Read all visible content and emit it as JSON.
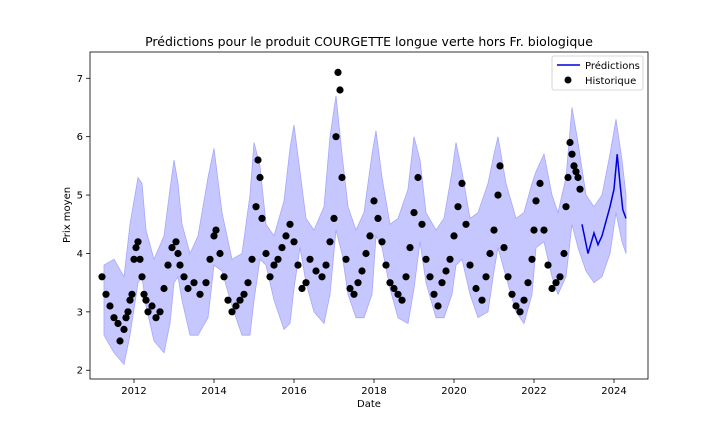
{
  "chart_data": {
    "type": "line",
    "title": "Prédictions pour le produit COURGETTE longue verte hors Fr. biologique",
    "xlabel": "Date",
    "ylabel": "Prix moyen",
    "xlim": [
      2010.9,
      2024.85
    ],
    "ylim": [
      1.85,
      7.45
    ],
    "x_ticks": [
      2012,
      2014,
      2016,
      2018,
      2020,
      2022,
      2024
    ],
    "y_ticks": [
      2,
      3,
      4,
      5,
      6,
      7
    ],
    "legend": {
      "position": "top-right",
      "entries": [
        "Prédictions",
        "Historique"
      ]
    },
    "colors": {
      "prediction": "#0000dd",
      "band": "#c7c7ff",
      "band_edge": "#a6a6ff",
      "history": "#000000"
    },
    "band": {
      "x": [
        2011.25,
        2011.5,
        2011.75,
        2011.9,
        2012.1,
        2012.2,
        2012.3,
        2012.5,
        2012.75,
        2012.9,
        2013.0,
        2013.1,
        2013.2,
        2013.4,
        2013.6,
        2013.85,
        2014.0,
        2014.2,
        2014.45,
        2014.7,
        2014.9,
        2015.0,
        2015.15,
        2015.3,
        2015.5,
        2015.75,
        2015.9,
        2016.0,
        2016.15,
        2016.3,
        2016.5,
        2016.75,
        2016.9,
        2017.05,
        2017.2,
        2017.35,
        2017.55,
        2017.75,
        2017.95,
        2018.05,
        2018.2,
        2018.4,
        2018.6,
        2018.85,
        2019.0,
        2019.15,
        2019.3,
        2019.55,
        2019.75,
        2019.95,
        2020.05,
        2020.2,
        2020.4,
        2020.6,
        2020.85,
        2021.0,
        2021.1,
        2021.3,
        2021.55,
        2021.75,
        2021.95,
        2022.05,
        2022.25,
        2022.45,
        2022.6,
        2022.8,
        2022.95,
        2023.1,
        2023.3,
        2023.5,
        2023.7,
        2023.9,
        2024.05,
        2024.2,
        2024.3
      ],
      "upper": [
        3.8,
        3.9,
        3.6,
        4.5,
        5.3,
        5.2,
        4.4,
        3.9,
        4.3,
        5.1,
        5.6,
        5.2,
        4.5,
        4.0,
        4.3,
        5.3,
        5.8,
        4.7,
        3.9,
        4.0,
        5.0,
        5.9,
        5.5,
        4.5,
        4.3,
        4.9,
        5.8,
        6.2,
        5.4,
        4.6,
        4.4,
        4.8,
        6.0,
        6.7,
        5.7,
        4.8,
        4.4,
        4.7,
        5.7,
        6.1,
        5.3,
        4.5,
        4.6,
        5.1,
        6.0,
        5.6,
        4.7,
        4.4,
        4.6,
        5.4,
        5.9,
        5.4,
        4.6,
        4.7,
        5.2,
        5.7,
        6.0,
        5.2,
        4.6,
        4.7,
        5.2,
        5.4,
        5.7,
        5.0,
        4.7,
        5.3,
        6.5,
        5.9,
        5.0,
        4.8,
        5.0,
        5.7,
        6.3,
        5.6,
        5.0
      ],
      "lower": [
        2.6,
        2.3,
        2.1,
        2.6,
        3.5,
        3.6,
        3.1,
        2.5,
        2.3,
        2.8,
        3.5,
        3.6,
        3.2,
        2.6,
        2.6,
        2.9,
        3.8,
        3.7,
        3.1,
        2.6,
        2.6,
        3.2,
        3.9,
        3.8,
        3.2,
        2.7,
        2.8,
        3.4,
        4.1,
        3.5,
        3.0,
        2.8,
        3.3,
        4.4,
        4.0,
        3.3,
        2.9,
        2.9,
        3.3,
        4.3,
        4.1,
        3.4,
        2.9,
        2.8,
        3.4,
        4.2,
        3.5,
        2.9,
        2.9,
        3.3,
        3.8,
        3.9,
        3.3,
        2.9,
        3.0,
        3.7,
        4.1,
        3.6,
        3.0,
        2.8,
        3.3,
        4.1,
        4.2,
        3.6,
        3.3,
        3.6,
        4.5,
        4.1,
        3.7,
        3.5,
        3.6,
        4.0,
        4.7,
        4.2,
        4.0
      ]
    },
    "series": [
      {
        "name": "Prédictions",
        "x": [
          2023.2,
          2023.35,
          2023.5,
          2023.6,
          2023.7,
          2023.8,
          2023.9,
          2024.0,
          2024.08,
          2024.15,
          2024.22,
          2024.3
        ],
        "y": [
          4.5,
          4.0,
          4.35,
          4.15,
          4.3,
          4.55,
          4.8,
          5.1,
          5.7,
          5.2,
          4.75,
          4.6
        ]
      },
      {
        "name": "Historique",
        "x": [
          2011.2,
          2011.3,
          2011.4,
          2011.5,
          2011.6,
          2011.65,
          2011.75,
          2011.8,
          2011.85,
          2011.9,
          2011.95,
          2012.0,
          2012.05,
          2012.1,
          2012.15,
          2012.2,
          2012.25,
          2012.3,
          2012.35,
          2012.45,
          2012.55,
          2012.65,
          2012.75,
          2012.85,
          2012.95,
          2013.05,
          2013.1,
          2013.15,
          2013.25,
          2013.35,
          2013.5,
          2013.65,
          2013.8,
          2013.9,
          2014.0,
          2014.05,
          2014.15,
          2014.25,
          2014.35,
          2014.45,
          2014.55,
          2014.65,
          2014.75,
          2014.85,
          2014.95,
          2015.05,
          2015.1,
          2015.15,
          2015.2,
          2015.3,
          2015.4,
          2015.5,
          2015.6,
          2015.7,
          2015.8,
          2015.9,
          2016.0,
          2016.1,
          2016.2,
          2016.3,
          2016.4,
          2016.55,
          2016.7,
          2016.8,
          2016.9,
          2017.0,
          2017.05,
          2017.1,
          2017.15,
          2017.2,
          2017.3,
          2017.4,
          2017.5,
          2017.6,
          2017.7,
          2017.8,
          2017.9,
          2018.0,
          2018.1,
          2018.2,
          2018.3,
          2018.4,
          2018.5,
          2018.6,
          2018.7,
          2018.8,
          2018.9,
          2019.0,
          2019.1,
          2019.2,
          2019.3,
          2019.4,
          2019.5,
          2019.6,
          2019.7,
          2019.8,
          2019.9,
          2020.0,
          2020.1,
          2020.2,
          2020.3,
          2020.4,
          2020.55,
          2020.7,
          2020.8,
          2020.9,
          2021.0,
          2021.1,
          2021.15,
          2021.25,
          2021.35,
          2021.45,
          2021.55,
          2021.65,
          2021.75,
          2021.85,
          2021.95,
          2022.0,
          2022.05,
          2022.15,
          2022.25,
          2022.35,
          2022.45,
          2022.55,
          2022.65,
          2022.75,
          2022.8,
          2022.85,
          2022.9,
          2022.95,
          2023.0,
          2023.05,
          2023.1,
          2023.15
        ],
        "y": [
          3.6,
          3.3,
          3.1,
          2.9,
          2.8,
          2.5,
          2.7,
          2.9,
          3.0,
          3.2,
          3.3,
          3.9,
          4.1,
          4.2,
          3.9,
          3.6,
          3.3,
          3.2,
          3.0,
          3.1,
          2.9,
          3.0,
          3.4,
          3.8,
          4.1,
          4.2,
          4.0,
          3.8,
          3.6,
          3.4,
          3.5,
          3.3,
          3.5,
          3.9,
          4.3,
          4.4,
          4.0,
          3.6,
          3.2,
          3.0,
          3.1,
          3.2,
          3.3,
          3.5,
          3.9,
          4.8,
          5.6,
          5.3,
          4.6,
          4.0,
          3.6,
          3.8,
          3.9,
          4.1,
          4.3,
          4.5,
          4.2,
          3.8,
          3.4,
          3.5,
          3.9,
          3.7,
          3.6,
          3.8,
          4.2,
          4.6,
          6.0,
          7.1,
          6.8,
          5.3,
          3.9,
          3.4,
          3.3,
          3.5,
          3.7,
          4.0,
          4.3,
          4.9,
          4.6,
          4.2,
          3.8,
          3.5,
          3.4,
          3.3,
          3.2,
          3.6,
          4.1,
          4.7,
          5.3,
          4.5,
          3.9,
          3.6,
          3.3,
          3.1,
          3.5,
          3.7,
          3.9,
          4.3,
          4.8,
          5.2,
          4.5,
          3.8,
          3.4,
          3.2,
          3.6,
          4.0,
          4.4,
          5.0,
          5.5,
          4.1,
          3.6,
          3.3,
          3.1,
          3.0,
          3.2,
          3.5,
          3.9,
          4.4,
          4.9,
          5.2,
          4.4,
          3.8,
          3.4,
          3.5,
          3.6,
          4.0,
          4.8,
          5.3,
          5.9,
          5.7,
          5.5,
          5.4,
          5.3,
          5.1
        ]
      }
    ]
  }
}
